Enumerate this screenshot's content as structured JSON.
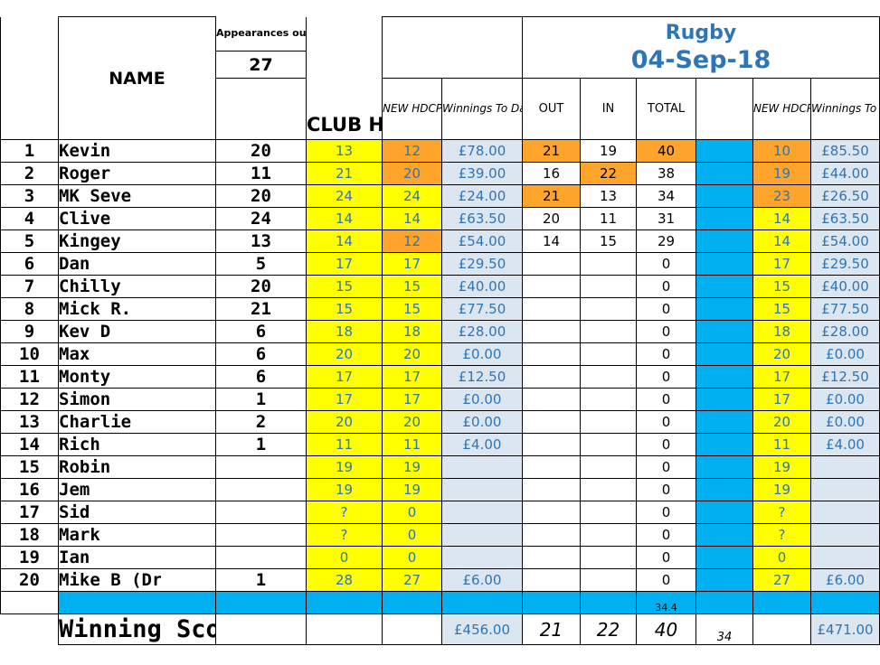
{
  "headers": {
    "name": "NAME",
    "appearances_label": "Appearances out of",
    "appearances_total": "27",
    "club_hcp": "CLUB HCP",
    "new_hdcp": "NEW HDCP",
    "winnings_to_date": "Winnings To Date",
    "out": "OUT",
    "in": "IN",
    "total": "TOTAL",
    "new_hdcp_2": "NEW HDCP",
    "winnings_to_date_2": "Winnings To Date",
    "event_name": "Rugby",
    "event_date": "04-Sep-18"
  },
  "players": [
    {
      "num": "1",
      "name": "Kevin",
      "apps": "20",
      "club": "13",
      "new": "12",
      "win": "£78.00",
      "out": "21",
      "in": "19",
      "total": "40",
      "new2": "10",
      "win2": "£85.50"
    },
    {
      "num": "2",
      "name": "Roger",
      "apps": "11",
      "club": "21",
      "new": "20",
      "win": "£39.00",
      "out": "16",
      "in": "22",
      "total": "38",
      "new2": "19",
      "win2": "£44.00"
    },
    {
      "num": "3",
      "name": "MK Seve",
      "apps": "20",
      "club": "24",
      "new": "24",
      "win": "£24.00",
      "out": "21",
      "in": "13",
      "total": "34",
      "new2": "23",
      "win2": "£26.50"
    },
    {
      "num": "4",
      "name": "Clive",
      "apps": "24",
      "club": "14",
      "new": "14",
      "win": "£63.50",
      "out": "20",
      "in": "11",
      "total": "31",
      "new2": "14",
      "win2": "£63.50"
    },
    {
      "num": "5",
      "name": "Kingey",
      "apps": "13",
      "club": "14",
      "new": "12",
      "win": "£54.00",
      "out": "14",
      "in": "15",
      "total": "29",
      "new2": "14",
      "win2": "£54.00"
    },
    {
      "num": "6",
      "name": "Dan",
      "apps": "5",
      "club": "17",
      "new": "17",
      "win": "£29.50",
      "out": "",
      "in": "",
      "total": "0",
      "new2": "17",
      "win2": "£29.50"
    },
    {
      "num": "7",
      "name": "Chilly",
      "apps": "20",
      "club": "15",
      "new": "15",
      "win": "£40.00",
      "out": "",
      "in": "",
      "total": "0",
      "new2": "15",
      "win2": "£40.00"
    },
    {
      "num": "8",
      "name": "Mick R.",
      "apps": "21",
      "club": "15",
      "new": "15",
      "win": "£77.50",
      "out": "",
      "in": "",
      "total": "0",
      "new2": "15",
      "win2": "£77.50"
    },
    {
      "num": "9",
      "name": "Kev D",
      "apps": "6",
      "club": "18",
      "new": "18",
      "win": "£28.00",
      "out": "",
      "in": "",
      "total": "0",
      "new2": "18",
      "win2": "£28.00"
    },
    {
      "num": "10",
      "name": "Max",
      "apps": "6",
      "club": "20",
      "new": "20",
      "win": "£0.00",
      "out": "",
      "in": "",
      "total": "0",
      "new2": "20",
      "win2": "£0.00"
    },
    {
      "num": "11",
      "name": "Monty",
      "apps": "6",
      "club": "17",
      "new": "17",
      "win": "£12.50",
      "out": "",
      "in": "",
      "total": "0",
      "new2": "17",
      "win2": "£12.50"
    },
    {
      "num": "12",
      "name": "Simon",
      "apps": "1",
      "club": "17",
      "new": "17",
      "win": "£0.00",
      "out": "",
      "in": "",
      "total": "0",
      "new2": "17",
      "win2": "£0.00"
    },
    {
      "num": "13",
      "name": "Charlie",
      "apps": "2",
      "club": "20",
      "new": "20",
      "win": "£0.00",
      "out": "",
      "in": "",
      "total": "0",
      "new2": "20",
      "win2": "£0.00"
    },
    {
      "num": "14",
      "name": "Rich",
      "apps": "1",
      "club": "11",
      "new": "11",
      "win": "£4.00",
      "out": "",
      "in": "",
      "total": "0",
      "new2": "11",
      "win2": "£4.00"
    },
    {
      "num": "15",
      "name": "Robin",
      "apps": "",
      "club": "19",
      "new": "19",
      "win": "",
      "out": "",
      "in": "",
      "total": "0",
      "new2": "19",
      "win2": ""
    },
    {
      "num": "16",
      "name": "Jem",
      "apps": "",
      "club": "19",
      "new": "19",
      "win": "",
      "out": "",
      "in": "",
      "total": "0",
      "new2": "19",
      "win2": ""
    },
    {
      "num": "17",
      "name": "Sid",
      "apps": "",
      "club": "?",
      "new": "0",
      "win": "",
      "out": "",
      "in": "",
      "total": "0",
      "new2": "?",
      "win2": ""
    },
    {
      "num": "18",
      "name": "Mark",
      "apps": "",
      "club": "?",
      "new": "0",
      "win": "",
      "out": "",
      "in": "",
      "total": "0",
      "new2": "?",
      "win2": ""
    },
    {
      "num": "19",
      "name": "Ian",
      "apps": "",
      "club": "0",
      "new": "0",
      "win": "",
      "out": "",
      "in": "",
      "total": "0",
      "new2": "0",
      "win2": ""
    },
    {
      "num": "20",
      "name": "Mike B (Draft)",
      "apps": "1",
      "club": "28",
      "new": "27",
      "win": "£6.00",
      "out": "",
      "in": "",
      "total": "0",
      "new2": "27",
      "win2": "£6.00"
    }
  ],
  "highlights": {
    "new_orange_rows": [
      0,
      1,
      4
    ],
    "out_orange_rows": [
      0,
      2
    ],
    "in_orange_rows": [
      1
    ],
    "total_orange_rows": [
      0
    ],
    "new2_orange_rows": [
      0,
      1,
      2
    ]
  },
  "colors": {
    "yellow": "#ffff00",
    "orange": "#ffa42b",
    "light_blue": "#dce6f1",
    "cyan": "#00b0f0",
    "value_blue": "#2e75b6"
  },
  "cyan_row": {
    "total_note": "34.4"
  },
  "footer": {
    "title": "Winning Scores",
    "winnings_total": "£456.00",
    "out": "21",
    "in": "22",
    "total": "40",
    "extra": "34",
    "winnings_total_2": "£471.00"
  }
}
